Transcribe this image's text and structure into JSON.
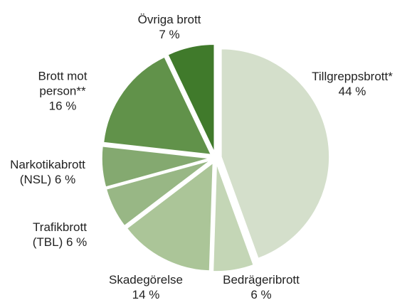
{
  "chart_data": {
    "type": "pie",
    "categories": [
      "Tillgreppsbrott*",
      "Bedrägeribrott",
      "Skadegörelse",
      "Trafikbrott (TBL)",
      "Narkotikabrott (NSL)",
      "Brott mot person**",
      "Övriga brott"
    ],
    "values": [
      44,
      6,
      14,
      6,
      6,
      16,
      7
    ],
    "value_labels": [
      "44 %",
      "6 %",
      "14 %",
      "6 %",
      "6 %",
      "16 %",
      "7 %"
    ],
    "colors": [
      "#d4dfcb",
      "#c4d6b6",
      "#abc598",
      "#98b785",
      "#84a970",
      "#61924a",
      "#407a2b"
    ]
  }
}
